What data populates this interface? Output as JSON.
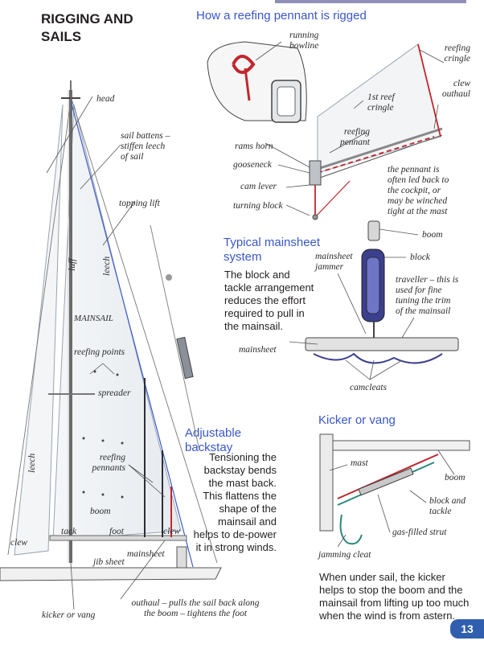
{
  "page": {
    "title": "RIGGING AND SAILS",
    "page_number": "13"
  },
  "sections": {
    "reefing": {
      "heading": "How a reefing pennant is rigged"
    },
    "mainsheet": {
      "heading": "Typical mainsheet system",
      "body": "The block and tackle arrangement reduces the effort required to pull in the mainsail."
    },
    "backstay": {
      "heading": "Adjustable backstay",
      "body": "Tensioning the backstay bends the mast back. This flattens the shape of the mainsail and helps to de-power it in strong winds."
    },
    "kicker": {
      "heading": "Kicker or vang",
      "body": "When under sail, the kicker helps to stop the boom and the mainsail from lifting up too much when the wind is from astern."
    }
  },
  "labels": {
    "head": "head",
    "sail_battens": "sail battens –\nstiffen leech\nof sail",
    "topping_lift": "topping lift",
    "luff": "luff",
    "leech_main": "leech",
    "mainsail": "MAINSAIL",
    "reefing_points": "reefing points",
    "spreader": "spreader",
    "reefing_pennants": "reefing\npennants",
    "leech_jib": "leech",
    "boom_main": "boom",
    "tack": "tack",
    "foot": "foot",
    "clew_main": "clew",
    "clew_jib": "clew",
    "mainsheet_main": "mainsheet",
    "jib_sheet": "jib sheet",
    "kicker_vang": "kicker or vang",
    "outhaul": "outhaul – pulls the sail back along\nthe boom – tightens the foot",
    "running_bowline": "running\nbowline",
    "reefing_cringle": "reefing\ncringle",
    "clew_outhaul": "clew\nouthaul",
    "first_reef_cringle": "1st reef\ncringle",
    "reefing_pennant": "reefing\npennant",
    "rams_horn": "rams horn",
    "gooseneck": "gooseneck",
    "cam_lever": "cam lever",
    "turning_block": "turning block",
    "pennant_note": "the pennant is\noften led back to\nthe cockpit, or\nmay be winched\ntight at the mast",
    "boom_ms": "boom",
    "block_ms": "block",
    "mainsheet_jammer": "mainsheet\njammer",
    "traveller": "traveller – this is\nused for fine\ntuning the trim\nof the mainsail",
    "mainsheet_ms": "mainsheet",
    "camcleats": "camcleats",
    "mast_k": "mast",
    "boom_k": "boom",
    "block_tackle": "block and\ntackle",
    "gas_strut": "gas-filled strut",
    "jamming_cleat": "jamming cleat"
  }
}
